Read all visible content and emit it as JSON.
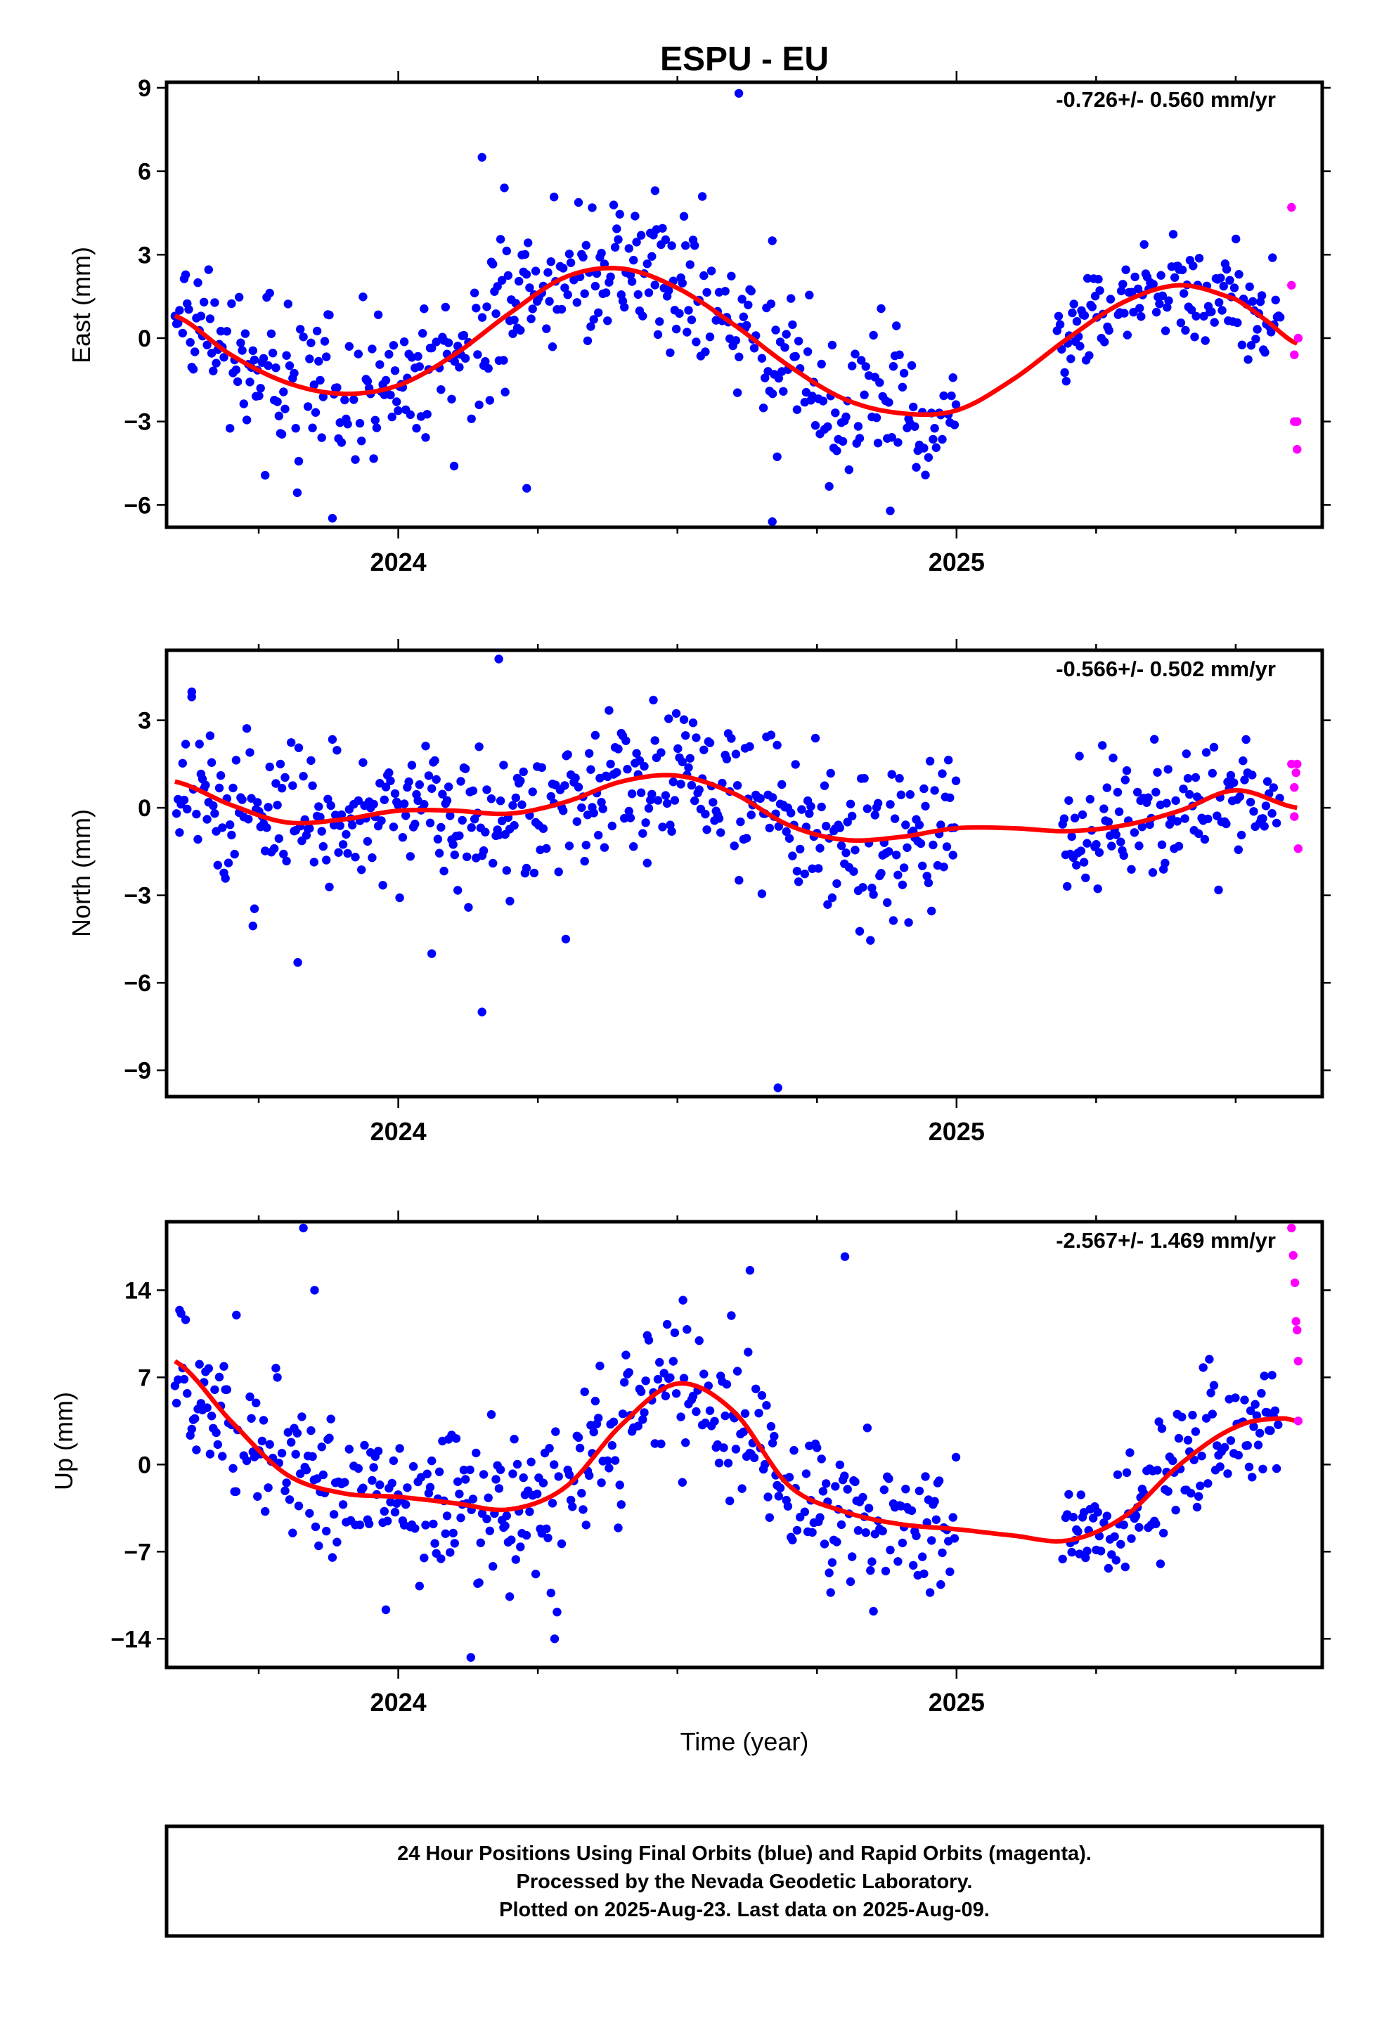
{
  "colors": {
    "final": "#0000ff",
    "rapid": "#ff00ff",
    "fit": "#ff0000"
  },
  "chart_data": [
    {
      "type": "scatter",
      "title": "ESPU - EU",
      "ylabel": "East (mm)",
      "xlabel": "",
      "annotation": "-0.726+/- 0.560 mm/yr",
      "ylim": [
        -6.8,
        9.2
      ],
      "xlim": [
        2023.585,
        2025.655
      ],
      "yticks": [
        -6,
        -3,
        0,
        3,
        6,
        9
      ],
      "yticklabels": [
        "−6",
        "−3",
        "0",
        "3",
        "6",
        "9"
      ],
      "xticks": [
        2024,
        2025
      ],
      "xticklabels": [
        "2024",
        "2025"
      ],
      "grid": false,
      "series": [
        {
          "kind": "points",
          "color": "rapid",
          "x": [
            2025.6,
            2025.6,
            2025.605,
            2025.605,
            2025.61,
            2025.61,
            2025.612
          ],
          "y": [
            4.7,
            1.9,
            -0.6,
            -3.0,
            -3.0,
            -4.0,
            0.0
          ]
        },
        {
          "kind": "fit",
          "color": "fit",
          "x": [
            2023.6,
            2023.7,
            2023.8,
            2023.9,
            2024.0,
            2024.1,
            2024.2,
            2024.3,
            2024.4,
            2024.5,
            2024.6,
            2024.7,
            2024.8,
            2024.9,
            2025.0,
            2025.1,
            2025.2,
            2025.3,
            2025.4,
            2025.5,
            2025.55,
            2025.61
          ],
          "y": [
            0.8,
            -0.6,
            -1.6,
            -2.0,
            -1.7,
            -0.6,
            0.9,
            2.2,
            2.5,
            1.8,
            0.5,
            -1.0,
            -2.2,
            -2.7,
            -2.6,
            -1.5,
            0.0,
            1.3,
            1.9,
            1.4,
            0.7,
            -0.2
          ]
        }
      ],
      "final_points": {
        "segments": [
          {
            "x0": 2023.6,
            "x1": 2025.0,
            "fit_index": 1,
            "scatter": 1.3
          },
          {
            "x0": 2025.18,
            "x1": 2025.58,
            "fit_index": 1,
            "scatter": 0.9
          }
        ],
        "outliers": {
          "x": [
            2024.15,
            2024.19,
            2024.61,
            2024.67,
            2024.67,
            2024.46,
            2024.23,
            2024.1
          ],
          "y": [
            6.5,
            5.4,
            8.8,
            3.5,
            -6.6,
            5.3,
            -5.4,
            -4.6
          ]
        }
      }
    },
    {
      "type": "scatter",
      "title": "",
      "ylabel": "North (mm)",
      "xlabel": "",
      "annotation": "-0.566+/- 0.502 mm/yr",
      "ylim": [
        -9.9,
        5.4
      ],
      "xlim": [
        2023.585,
        2025.655
      ],
      "yticks": [
        -9,
        -6,
        -3,
        0,
        3
      ],
      "yticklabels": [
        "−9",
        "−6",
        "−3",
        "0",
        "3"
      ],
      "xticks": [
        2024,
        2025
      ],
      "xticklabels": [
        "2024",
        "2025"
      ],
      "grid": false,
      "series": [
        {
          "kind": "points",
          "color": "rapid",
          "x": [
            2025.6,
            2025.605,
            2025.605,
            2025.608,
            2025.61,
            2025.612
          ],
          "y": [
            1.5,
            0.7,
            -0.3,
            1.2,
            1.5,
            -1.4
          ]
        },
        {
          "kind": "fit",
          "color": "fit",
          "x": [
            2023.6,
            2023.7,
            2023.8,
            2023.9,
            2024.0,
            2024.1,
            2024.2,
            2024.3,
            2024.4,
            2024.5,
            2024.6,
            2024.7,
            2024.8,
            2024.9,
            2025.0,
            2025.1,
            2025.2,
            2025.3,
            2025.4,
            2025.5,
            2025.61
          ],
          "y": [
            0.9,
            0.1,
            -0.5,
            -0.4,
            -0.1,
            -0.1,
            -0.2,
            0.2,
            0.9,
            1.1,
            0.5,
            -0.6,
            -1.1,
            -1.0,
            -0.7,
            -0.7,
            -0.8,
            -0.6,
            -0.1,
            0.6,
            0.0
          ]
        }
      ],
      "final_points": {
        "segments": [
          {
            "x0": 2023.6,
            "x1": 2025.0,
            "fit_index": 1,
            "scatter": 1.3
          },
          {
            "x0": 2025.19,
            "x1": 2025.58,
            "fit_index": 1,
            "scatter": 1.0
          }
        ],
        "outliers": {
          "x": [
            2024.18,
            2024.15,
            2024.68,
            2023.63,
            2023.82,
            2024.06,
            2024.2,
            2024.3
          ],
          "y": [
            5.1,
            -7.0,
            -9.6,
            3.8,
            -5.3,
            -5.0,
            -3.2,
            -4.5
          ]
        }
      }
    },
    {
      "type": "scatter",
      "title": "",
      "ylabel": "Up (mm)",
      "xlabel": "Time (year)",
      "annotation": "-2.567+/- 1.469 mm/yr",
      "ylim": [
        -16.3,
        19.5
      ],
      "xlim": [
        2023.585,
        2025.655
      ],
      "yticks": [
        -14,
        -7,
        0,
        7,
        14
      ],
      "yticklabels": [
        "−14",
        "−7",
        "0",
        "7",
        "14"
      ],
      "xticks": [
        2024,
        2025
      ],
      "xticklabels": [
        "2024",
        "2025"
      ],
      "grid": false,
      "series": [
        {
          "kind": "points",
          "color": "rapid",
          "x": [
            2025.6,
            2025.603,
            2025.606,
            2025.608,
            2025.61,
            2025.612,
            2025.612
          ],
          "y": [
            19.0,
            16.8,
            14.6,
            11.5,
            10.8,
            8.3,
            3.5
          ]
        },
        {
          "kind": "fit",
          "color": "fit",
          "x": [
            2023.6,
            2023.7,
            2023.8,
            2023.9,
            2024.0,
            2024.1,
            2024.2,
            2024.3,
            2024.4,
            2024.5,
            2024.6,
            2024.7,
            2024.8,
            2024.9,
            2025.0,
            2025.1,
            2025.2,
            2025.3,
            2025.4,
            2025.5,
            2025.58,
            2025.61
          ],
          "y": [
            8.3,
            3.5,
            -0.8,
            -2.3,
            -2.6,
            -3.1,
            -3.6,
            -1.8,
            3.2,
            6.5,
            4.3,
            -1.7,
            -3.8,
            -4.8,
            -5.2,
            -5.7,
            -6.1,
            -4.2,
            0.0,
            3.0,
            3.7,
            3.5
          ]
        }
      ],
      "final_points": {
        "segments": [
          {
            "x0": 2023.6,
            "x1": 2025.0,
            "fit_index": 1,
            "scatter": 3.2
          },
          {
            "x0": 2025.19,
            "x1": 2025.58,
            "fit_index": 1,
            "scatter": 2.3
          }
        ],
        "outliers": {
          "x": [
            2023.83,
            2023.85,
            2024.13,
            2024.28,
            2024.8,
            2024.63,
            2024.51,
            2023.71
          ],
          "y": [
            19.0,
            14.0,
            -15.5,
            -14.0,
            16.7,
            15.6,
            13.2,
            12.0
          ]
        }
      }
    }
  ],
  "footer": {
    "line1": "24 Hour Positions Using Final Orbits (blue) and Rapid Orbits (magenta).",
    "line2": "Processed by the Nevada Geodetic Laboratory.",
    "line3": "Plotted on 2025-Aug-23. Last data on 2025-Aug-09."
  }
}
